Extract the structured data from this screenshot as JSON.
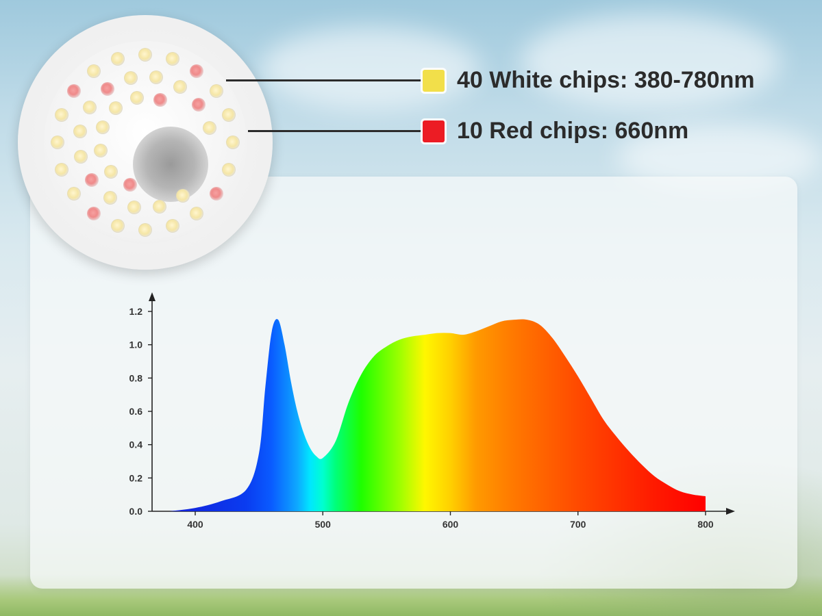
{
  "legend": {
    "white": {
      "label": "40 White chips: 380-780nm",
      "color": "#f2df4a"
    },
    "red": {
      "label": "10 Red chips: 660nm",
      "color": "#ec1c24"
    }
  },
  "chart_data": {
    "type": "area",
    "title": "",
    "xlabel": "",
    "ylabel": "",
    "xlim": [
      370,
      820
    ],
    "ylim": [
      0,
      1.25
    ],
    "x_ticks": [
      400,
      500,
      600,
      700,
      800
    ],
    "y_ticks": [
      0.0,
      0.2,
      0.4,
      0.6,
      0.8,
      1.0,
      1.2
    ],
    "x_tick_labels": [
      "400",
      "500",
      "600",
      "700",
      "800"
    ],
    "y_tick_labels": [
      "0.0",
      "0.2",
      "0.4",
      "0.6",
      "0.8",
      "1.0",
      "1.2"
    ],
    "grid": false,
    "fill": "wavelength-colored spectrum",
    "series": [
      {
        "x": [
          380,
          400,
          420,
          440,
          450,
          455,
          460,
          465,
          470,
          475,
          480,
          485,
          490,
          495,
          500,
          510,
          520,
          530,
          540,
          550,
          560,
          570,
          580,
          590,
          600,
          610,
          620,
          630,
          640,
          650,
          660,
          670,
          680,
          690,
          700,
          710,
          720,
          730,
          740,
          750,
          760,
          770,
          780,
          790,
          800
        ],
        "values": [
          0.0,
          0.02,
          0.06,
          0.13,
          0.35,
          0.75,
          1.08,
          1.15,
          1.0,
          0.78,
          0.6,
          0.47,
          0.38,
          0.33,
          0.32,
          0.42,
          0.65,
          0.82,
          0.93,
          0.99,
          1.03,
          1.05,
          1.06,
          1.07,
          1.07,
          1.06,
          1.08,
          1.11,
          1.14,
          1.15,
          1.15,
          1.12,
          1.04,
          0.93,
          0.81,
          0.68,
          0.55,
          0.45,
          0.36,
          0.28,
          0.21,
          0.16,
          0.12,
          0.1,
          0.09
        ]
      }
    ]
  }
}
